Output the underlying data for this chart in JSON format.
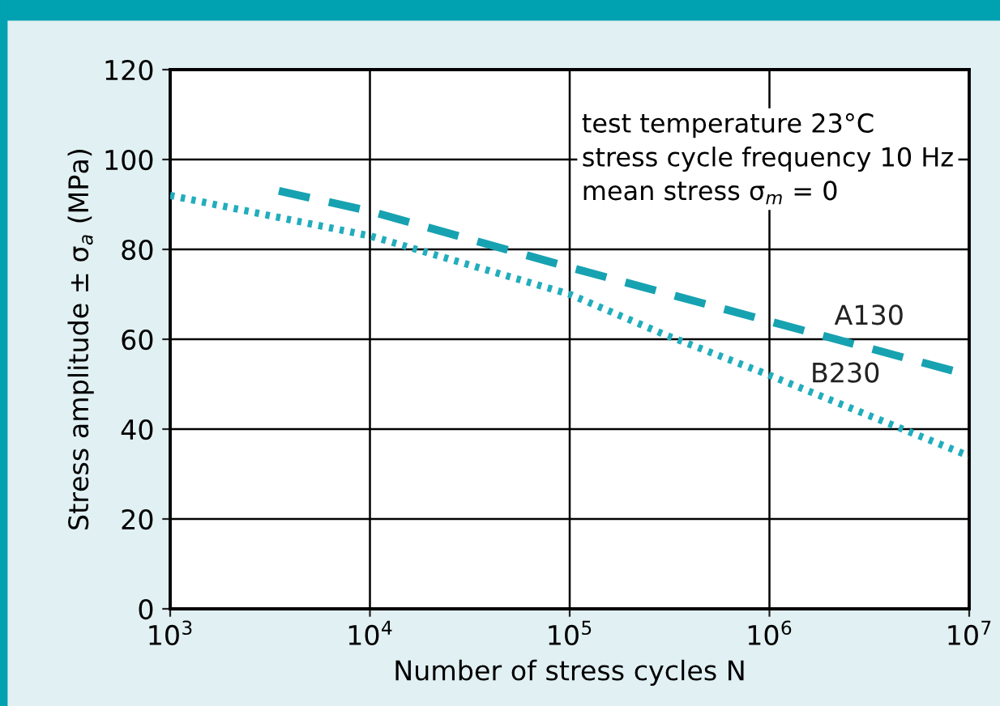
{
  "chart_data": {
    "type": "line",
    "xlabel": "Number of stress cycles N",
    "ylabel": "Stress amplitude ± σ$_{a}$ (MPa)",
    "log": "x",
    "xlim": [
      1000,
      10000000
    ],
    "ylim": [
      0,
      120
    ],
    "xticks": [
      {
        "value": 1000,
        "label": "10$^{3}$"
      },
      {
        "value": 10000,
        "label": "10$^{4}$"
      },
      {
        "value": 100000,
        "label": "10$^{5}$"
      },
      {
        "value": 1000000,
        "label": "10$^{6}$"
      },
      {
        "value": 10000000,
        "label": "10$^{7}$"
      }
    ],
    "yticks": [
      0,
      20,
      40,
      60,
      80,
      100,
      120
    ],
    "grid": true,
    "legend": false,
    "marker": "none",
    "annotations": [
      "test temperature 23°C\nstress cycle frequency 10 Hz\nmean stress σ$_{m}$ = 0"
    ],
    "series": [
      {
        "name": "A130",
        "color": "#17a2b1",
        "line_style": "dashed",
        "x": [
          3500,
          10000,
          100000,
          1000000,
          10000000
        ],
        "values": [
          93,
          88.5,
          76,
          64,
          52
        ]
      },
      {
        "name": "B230",
        "color": "#22adbd",
        "line_style": "dotted",
        "x": [
          1000,
          10000,
          100000,
          300000,
          1000000,
          10000000
        ],
        "values": [
          92,
          83,
          70,
          61,
          52,
          34
        ]
      }
    ]
  }
}
